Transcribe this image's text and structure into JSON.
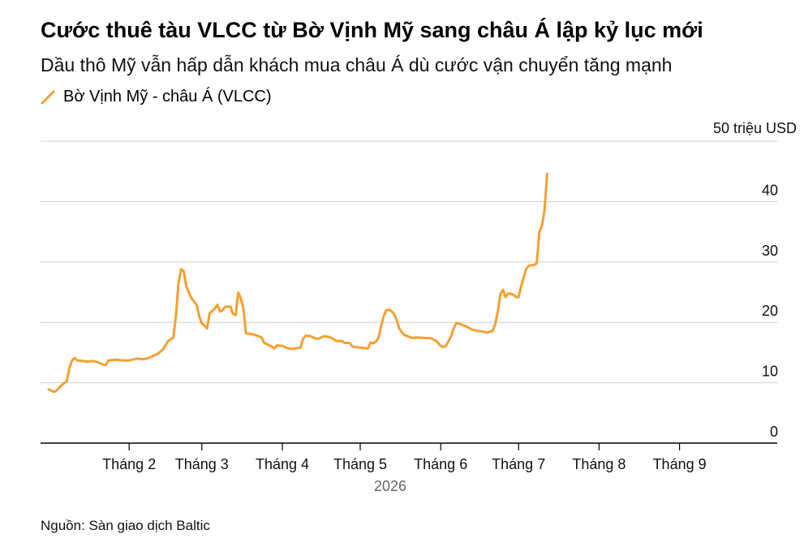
{
  "title": "Cước thuê tàu VLCC từ Bờ Vịnh Mỹ sang châu Á lập kỷ lục mới",
  "subtitle": "Dầu thô Mỹ vẫn hấp dẫn khách mua châu Á dù cước vận chuyển tăng mạnh",
  "source": "Nguồn: Sàn giao dịch Baltic",
  "colors": {
    "series": "#f5a031",
    "grid": "#cfcfcf",
    "axis": "#000000"
  },
  "chart_data": {
    "type": "line",
    "title": "Cước thuê tàu VLCC từ Bờ Vịnh Mỹ sang châu Á lập kỷ lục mới",
    "unit_label": "50 triệu USD",
    "year_label": "2026",
    "ylim": [
      0,
      50
    ],
    "y_ticks": [
      {
        "value": 0,
        "label": "0"
      },
      {
        "value": 10,
        "label": "10"
      },
      {
        "value": 20,
        "label": "20"
      },
      {
        "value": 30,
        "label": "30"
      },
      {
        "value": 40,
        "label": "40"
      }
    ],
    "x_ticks": [
      {
        "day": 32,
        "label": "Tháng 2"
      },
      {
        "day": 60,
        "label": "Tháng 3"
      },
      {
        "day": 91,
        "label": "Tháng 4"
      },
      {
        "day": 121,
        "label": "Tháng 5"
      },
      {
        "day": 152,
        "label": "Tháng 6"
      },
      {
        "day": 182,
        "label": "Tháng 7"
      },
      {
        "day": 213,
        "label": "Tháng 8"
      },
      {
        "day": 244,
        "label": "Tháng 9"
      }
    ],
    "grid": true,
    "legend_position": "top-left",
    "series": [
      {
        "name": "Bờ Vịnh Mỹ - châu Á (VLCC)",
        "color": "#f5a031",
        "points": [
          [
            1,
            8.9
          ],
          [
            3,
            8.5
          ],
          [
            4,
            8.7
          ],
          [
            6,
            9.6
          ],
          [
            8,
            10.3
          ],
          [
            9,
            12.5
          ],
          [
            10,
            13.7
          ],
          [
            11,
            14.1
          ],
          [
            12,
            13.7
          ],
          [
            14,
            13.6
          ],
          [
            16,
            13.5
          ],
          [
            18,
            13.6
          ],
          [
            20,
            13.4
          ],
          [
            22,
            13.0
          ],
          [
            23,
            12.9
          ],
          [
            24,
            13.7
          ],
          [
            27,
            13.8
          ],
          [
            30,
            13.7
          ],
          [
            32,
            13.7
          ],
          [
            35,
            14.0
          ],
          [
            37,
            13.9
          ],
          [
            39,
            14.0
          ],
          [
            41,
            14.4
          ],
          [
            43,
            14.8
          ],
          [
            45,
            15.5
          ],
          [
            47,
            16.9
          ],
          [
            49,
            17.5
          ],
          [
            50,
            21.0
          ],
          [
            51,
            26.5
          ],
          [
            52,
            28.8
          ],
          [
            53,
            28.5
          ],
          [
            54,
            26.0
          ],
          [
            56,
            24.0
          ],
          [
            58,
            22.9
          ],
          [
            59,
            21.0
          ],
          [
            60,
            19.8
          ],
          [
            61,
            19.5
          ],
          [
            62,
            19.0
          ],
          [
            63,
            21.5
          ],
          [
            65,
            22.3
          ],
          [
            66,
            22.9
          ],
          [
            67,
            21.8
          ],
          [
            68,
            22.0
          ],
          [
            69,
            22.6
          ],
          [
            71,
            22.6
          ],
          [
            72,
            21.4
          ],
          [
            73,
            21.2
          ],
          [
            74,
            24.9
          ],
          [
            75,
            24.0
          ],
          [
            76,
            22.3
          ],
          [
            77,
            18.2
          ],
          [
            80,
            18.0
          ],
          [
            83,
            17.5
          ],
          [
            84,
            16.6
          ],
          [
            87,
            16.0
          ],
          [
            88,
            15.7
          ],
          [
            89,
            16.2
          ],
          [
            91,
            16.1
          ],
          [
            93,
            15.7
          ],
          [
            95,
            15.6
          ],
          [
            98,
            15.8
          ],
          [
            99,
            17.3
          ],
          [
            100,
            17.8
          ],
          [
            102,
            17.7
          ],
          [
            104,
            17.3
          ],
          [
            105,
            17.3
          ],
          [
            107,
            17.7
          ],
          [
            109,
            17.6
          ],
          [
            110,
            17.4
          ],
          [
            112,
            16.9
          ],
          [
            114,
            16.9
          ],
          [
            115,
            16.6
          ],
          [
            117,
            16.6
          ],
          [
            118,
            16.0
          ],
          [
            121,
            15.8
          ],
          [
            124,
            15.7
          ],
          [
            125,
            16.7
          ],
          [
            126,
            16.5
          ],
          [
            127,
            16.8
          ],
          [
            128,
            17.4
          ],
          [
            129,
            19.3
          ],
          [
            130,
            21.0
          ],
          [
            131,
            22.0
          ],
          [
            132,
            22.1
          ],
          [
            133,
            21.9
          ],
          [
            134,
            21.4
          ],
          [
            135,
            20.5
          ],
          [
            136,
            19.0
          ],
          [
            137,
            18.4
          ],
          [
            138,
            17.9
          ],
          [
            140,
            17.6
          ],
          [
            141,
            17.4
          ],
          [
            143,
            17.5
          ],
          [
            146,
            17.4
          ],
          [
            148,
            17.4
          ],
          [
            150,
            17.0
          ],
          [
            151,
            16.6
          ],
          [
            152,
            16.1
          ],
          [
            153,
            15.9
          ],
          [
            154,
            16.1
          ],
          [
            155,
            16.9
          ],
          [
            156,
            17.7
          ],
          [
            157,
            19.0
          ],
          [
            158,
            19.9
          ],
          [
            159,
            19.8
          ],
          [
            162,
            19.3
          ],
          [
            164,
            18.8
          ],
          [
            166,
            18.6
          ],
          [
            168,
            18.5
          ],
          [
            170,
            18.3
          ],
          [
            172,
            18.6
          ],
          [
            173,
            19.7
          ],
          [
            174,
            21.8
          ],
          [
            175,
            24.7
          ],
          [
            176,
            25.4
          ],
          [
            177,
            24.2
          ],
          [
            178,
            24.8
          ],
          [
            180,
            24.6
          ],
          [
            181,
            24.2
          ],
          [
            182,
            24.2
          ],
          [
            183,
            26.0
          ],
          [
            184,
            27.5
          ],
          [
            185,
            28.9
          ],
          [
            186,
            29.4
          ],
          [
            188,
            29.5
          ],
          [
            189,
            29.8
          ],
          [
            190,
            34.9
          ],
          [
            191,
            36.0
          ],
          [
            192,
            38.6
          ],
          [
            193,
            44.6
          ]
        ]
      }
    ]
  },
  "legend_label": "Bờ Vịnh Mỹ - châu Á (VLCC)"
}
